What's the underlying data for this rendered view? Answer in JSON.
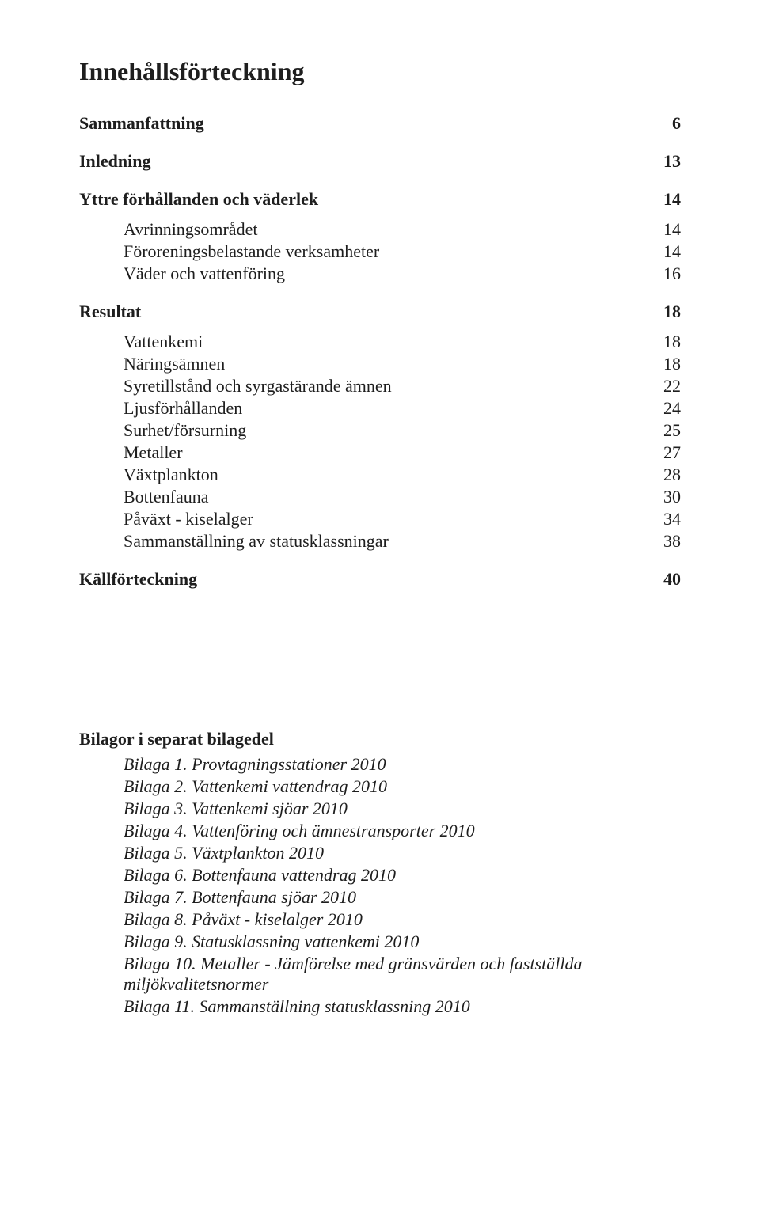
{
  "title": "Innehållsförteckning",
  "text_color": "#1e1e1e",
  "background_color": "#ffffff",
  "title_fontsize": 32,
  "body_fontsize": 22,
  "sections": [
    {
      "label": "Sammanfattning",
      "page": "6",
      "subs": []
    },
    {
      "label": "Inledning",
      "page": "13",
      "subs": []
    },
    {
      "label": "Yttre förhållanden och väderlek",
      "page": "14",
      "subs": [
        {
          "label": "Avrinningsområdet",
          "page": "14"
        },
        {
          "label": "Föroreningsbelastande verksamheter",
          "page": "14"
        },
        {
          "label": "Väder och vattenföring",
          "page": "16"
        }
      ]
    },
    {
      "label": "Resultat",
      "page": "18",
      "subs": [
        {
          "label": "Vattenkemi",
          "page": "18"
        },
        {
          "label": "Näringsämnen",
          "page": "18"
        },
        {
          "label": "Syretillstånd och syrgastärande ämnen",
          "page": "22"
        },
        {
          "label": "Ljusförhållanden",
          "page": "24"
        },
        {
          "label": "Surhet/försurning",
          "page": "25"
        },
        {
          "label": "Metaller",
          "page": "27"
        },
        {
          "label": "Växtplankton",
          "page": "28"
        },
        {
          "label": "Bottenfauna",
          "page": "30"
        },
        {
          "label": "Påväxt - kiselalger",
          "page": "34"
        },
        {
          "label": "Sammanställning av statusklassningar",
          "page": "38"
        }
      ]
    },
    {
      "label": "Källförteckning",
      "page": "40",
      "subs": []
    }
  ],
  "bilagor_title": "Bilagor i separat bilagedel",
  "bilagor": [
    "Bilaga 1. Provtagningsstationer 2010",
    "Bilaga 2. Vattenkemi vattendrag 2010",
    "Bilaga 3. Vattenkemi sjöar 2010",
    "Bilaga 4. Vattenföring och ämnestransporter 2010",
    "Bilaga 5. Växtplankton 2010",
    "Bilaga 6. Bottenfauna vattendrag 2010",
    "Bilaga 7. Bottenfauna sjöar 2010",
    "Bilaga 8. Påväxt - kiselalger 2010",
    "Bilaga 9. Statusklassning vattenkemi 2010",
    "Bilaga 10. Metaller - Jämförelse med gränsvärden och fastställda miljökvalitetsnormer",
    "Bilaga 11. Sammanställning statusklassning 2010"
  ]
}
